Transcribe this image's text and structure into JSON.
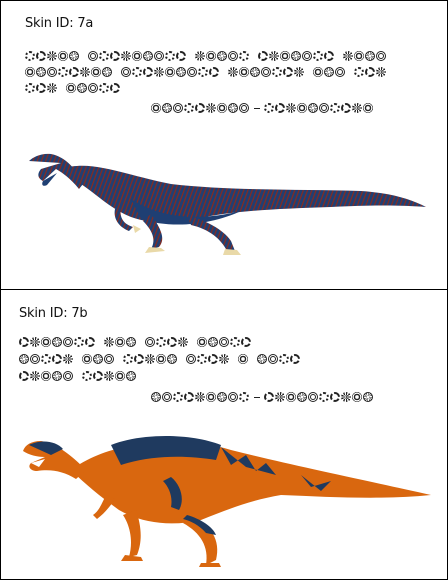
{
  "panels": [
    {
      "skin_label": "Skin ID: 7a",
      "colors": {
        "body": "#1f3f73",
        "accent": "#8b2a1c",
        "claws": "#e9d9a8"
      },
      "glyph_lines": [
        [
          5,
          9,
          5,
          7,
          4
        ],
        [
          8,
          9,
          7,
          3,
          3
        ],
        [
          3,
          5
        ],
        [
          9,
          "-",
          10
        ]
      ]
    },
    {
      "skin_label": "Skin ID: 7b",
      "colors": {
        "body": "#d9670f",
        "accent": "#1f3a5f",
        "claws": "#f1e6c8"
      },
      "glyph_lines": [
        [
          7,
          3,
          4,
          5
        ],
        [
          5,
          3,
          5,
          4,
          1,
          4
        ],
        [
          5,
          5
        ],
        [
          9,
          "-",
          10
        ]
      ]
    }
  ]
}
